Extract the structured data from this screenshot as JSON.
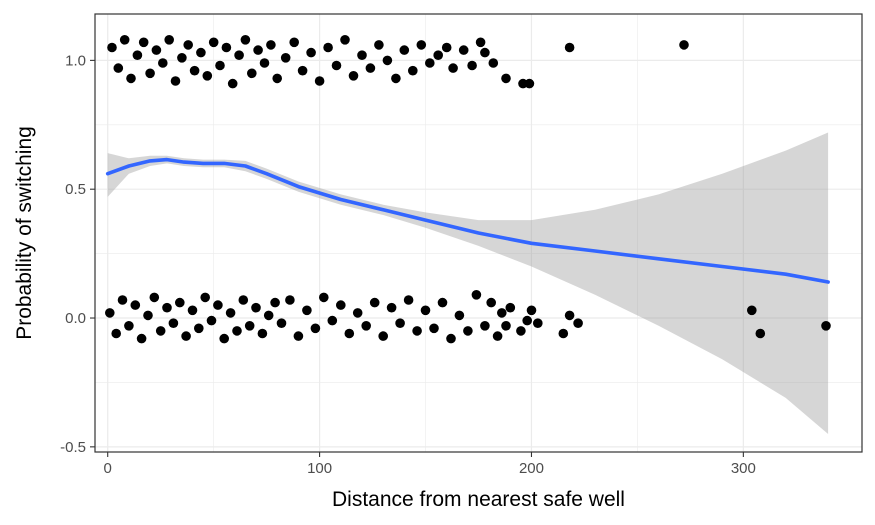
{
  "chart_data": {
    "type": "scatter",
    "title": "",
    "xlabel": "Distance from nearest safe well",
    "ylabel": "Probability of switching",
    "xlim": [
      -6,
      356
    ],
    "ylim": [
      -0.52,
      1.18
    ],
    "x_ticks": [
      0,
      100,
      200,
      300
    ],
    "x_tick_labels": [
      "0",
      "100",
      "200",
      "300"
    ],
    "y_ticks": [
      -0.5,
      0.0,
      0.5,
      1.0
    ],
    "y_tick_labels": [
      "-0.5",
      "0.0",
      "0.5",
      "1.0"
    ],
    "grid": true,
    "legend": "none",
    "colors": {
      "points": "#000000",
      "smooth_line": "#3366ff",
      "confidence_band": "#999999",
      "grid_major": "#ebebeb",
      "panel_border": "#333333"
    },
    "series": [
      {
        "kind": "jittered-points",
        "points": [
          {
            "x": 2,
            "y": 1.05
          },
          {
            "x": 5,
            "y": 0.97
          },
          {
            "x": 8,
            "y": 1.08
          },
          {
            "x": 11,
            "y": 0.93
          },
          {
            "x": 14,
            "y": 1.02
          },
          {
            "x": 17,
            "y": 1.07
          },
          {
            "x": 20,
            "y": 0.95
          },
          {
            "x": 23,
            "y": 1.04
          },
          {
            "x": 26,
            "y": 0.99
          },
          {
            "x": 29,
            "y": 1.08
          },
          {
            "x": 32,
            "y": 0.92
          },
          {
            "x": 35,
            "y": 1.01
          },
          {
            "x": 38,
            "y": 1.06
          },
          {
            "x": 41,
            "y": 0.96
          },
          {
            "x": 44,
            "y": 1.03
          },
          {
            "x": 47,
            "y": 0.94
          },
          {
            "x": 50,
            "y": 1.07
          },
          {
            "x": 53,
            "y": 0.98
          },
          {
            "x": 56,
            "y": 1.05
          },
          {
            "x": 59,
            "y": 0.91
          },
          {
            "x": 62,
            "y": 1.02
          },
          {
            "x": 65,
            "y": 1.08
          },
          {
            "x": 68,
            "y": 0.95
          },
          {
            "x": 71,
            "y": 1.04
          },
          {
            "x": 74,
            "y": 0.99
          },
          {
            "x": 77,
            "y": 1.06
          },
          {
            "x": 80,
            "y": 0.93
          },
          {
            "x": 84,
            "y": 1.01
          },
          {
            "x": 88,
            "y": 1.07
          },
          {
            "x": 92,
            "y": 0.96
          },
          {
            "x": 96,
            "y": 1.03
          },
          {
            "x": 100,
            "y": 0.92
          },
          {
            "x": 104,
            "y": 1.05
          },
          {
            "x": 108,
            "y": 0.98
          },
          {
            "x": 112,
            "y": 1.08
          },
          {
            "x": 116,
            "y": 0.94
          },
          {
            "x": 120,
            "y": 1.02
          },
          {
            "x": 124,
            "y": 0.97
          },
          {
            "x": 128,
            "y": 1.06
          },
          {
            "x": 132,
            "y": 1.0
          },
          {
            "x": 136,
            "y": 0.93
          },
          {
            "x": 140,
            "y": 1.04
          },
          {
            "x": 144,
            "y": 0.96
          },
          {
            "x": 148,
            "y": 1.06
          },
          {
            "x": 152,
            "y": 0.99
          },
          {
            "x": 156,
            "y": 1.02
          },
          {
            "x": 160,
            "y": 1.05
          },
          {
            "x": 163,
            "y": 0.97
          },
          {
            "x": 168,
            "y": 1.04
          },
          {
            "x": 172,
            "y": 0.98
          },
          {
            "x": 176,
            "y": 1.07
          },
          {
            "x": 178,
            "y": 1.03
          },
          {
            "x": 182,
            "y": 0.99
          },
          {
            "x": 188,
            "y": 0.93
          },
          {
            "x": 196,
            "y": 0.91
          },
          {
            "x": 199,
            "y": 0.91
          },
          {
            "x": 218,
            "y": 1.05
          },
          {
            "x": 272,
            "y": 1.06
          },
          {
            "x": 1,
            "y": 0.02
          },
          {
            "x": 4,
            "y": -0.06
          },
          {
            "x": 7,
            "y": 0.07
          },
          {
            "x": 10,
            "y": -0.03
          },
          {
            "x": 13,
            "y": 0.05
          },
          {
            "x": 16,
            "y": -0.08
          },
          {
            "x": 19,
            "y": 0.01
          },
          {
            "x": 22,
            "y": 0.08
          },
          {
            "x": 25,
            "y": -0.05
          },
          {
            "x": 28,
            "y": 0.04
          },
          {
            "x": 31,
            "y": -0.02
          },
          {
            "x": 34,
            "y": 0.06
          },
          {
            "x": 37,
            "y": -0.07
          },
          {
            "x": 40,
            "y": 0.03
          },
          {
            "x": 43,
            "y": -0.04
          },
          {
            "x": 46,
            "y": 0.08
          },
          {
            "x": 49,
            "y": -0.01
          },
          {
            "x": 52,
            "y": 0.05
          },
          {
            "x": 55,
            "y": -0.08
          },
          {
            "x": 58,
            "y": 0.02
          },
          {
            "x": 61,
            "y": -0.05
          },
          {
            "x": 64,
            "y": 0.07
          },
          {
            "x": 67,
            "y": -0.03
          },
          {
            "x": 70,
            "y": 0.04
          },
          {
            "x": 73,
            "y": -0.06
          },
          {
            "x": 76,
            "y": 0.01
          },
          {
            "x": 79,
            "y": 0.06
          },
          {
            "x": 82,
            "y": -0.02
          },
          {
            "x": 86,
            "y": 0.07
          },
          {
            "x": 90,
            "y": -0.07
          },
          {
            "x": 94,
            "y": 0.03
          },
          {
            "x": 98,
            "y": -0.04
          },
          {
            "x": 102,
            "y": 0.08
          },
          {
            "x": 106,
            "y": -0.01
          },
          {
            "x": 110,
            "y": 0.05
          },
          {
            "x": 114,
            "y": -0.06
          },
          {
            "x": 118,
            "y": 0.02
          },
          {
            "x": 122,
            "y": -0.03
          },
          {
            "x": 126,
            "y": 0.06
          },
          {
            "x": 130,
            "y": -0.07
          },
          {
            "x": 134,
            "y": 0.04
          },
          {
            "x": 138,
            "y": -0.02
          },
          {
            "x": 142,
            "y": 0.07
          },
          {
            "x": 146,
            "y": -0.05
          },
          {
            "x": 150,
            "y": 0.03
          },
          {
            "x": 154,
            "y": -0.04
          },
          {
            "x": 158,
            "y": 0.06
          },
          {
            "x": 162,
            "y": -0.08
          },
          {
            "x": 166,
            "y": 0.01
          },
          {
            "x": 170,
            "y": -0.05
          },
          {
            "x": 174,
            "y": 0.09
          },
          {
            "x": 178,
            "y": -0.03
          },
          {
            "x": 181,
            "y": 0.06
          },
          {
            "x": 184,
            "y": -0.07
          },
          {
            "x": 186,
            "y": 0.02
          },
          {
            "x": 188,
            "y": -0.03
          },
          {
            "x": 190,
            "y": 0.04
          },
          {
            "x": 195,
            "y": -0.05
          },
          {
            "x": 198,
            "y": -0.01
          },
          {
            "x": 200,
            "y": 0.03
          },
          {
            "x": 203,
            "y": -0.02
          },
          {
            "x": 218,
            "y": 0.01
          },
          {
            "x": 215,
            "y": -0.06
          },
          {
            "x": 222,
            "y": -0.02
          },
          {
            "x": 304,
            "y": 0.03
          },
          {
            "x": 308,
            "y": -0.06
          },
          {
            "x": 339,
            "y": -0.03
          }
        ]
      },
      {
        "kind": "smooth-line",
        "x": [
          0,
          10,
          20,
          28,
          36,
          45,
          55,
          65,
          75,
          90,
          110,
          130,
          150,
          175,
          200,
          230,
          260,
          290,
          320,
          340
        ],
        "y": [
          0.56,
          0.59,
          0.61,
          0.615,
          0.605,
          0.6,
          0.6,
          0.59,
          0.56,
          0.51,
          0.46,
          0.42,
          0.38,
          0.33,
          0.29,
          0.26,
          0.23,
          0.2,
          0.17,
          0.14
        ],
        "ci_lower": [
          0.47,
          0.56,
          0.59,
          0.6,
          0.59,
          0.585,
          0.585,
          0.57,
          0.54,
          0.49,
          0.44,
          0.4,
          0.35,
          0.28,
          0.2,
          0.09,
          -0.03,
          -0.16,
          -0.31,
          -0.45
        ],
        "ci_upper": [
          0.64,
          0.62,
          0.63,
          0.63,
          0.62,
          0.615,
          0.615,
          0.61,
          0.58,
          0.53,
          0.48,
          0.44,
          0.41,
          0.38,
          0.38,
          0.42,
          0.48,
          0.56,
          0.65,
          0.72
        ]
      }
    ]
  }
}
